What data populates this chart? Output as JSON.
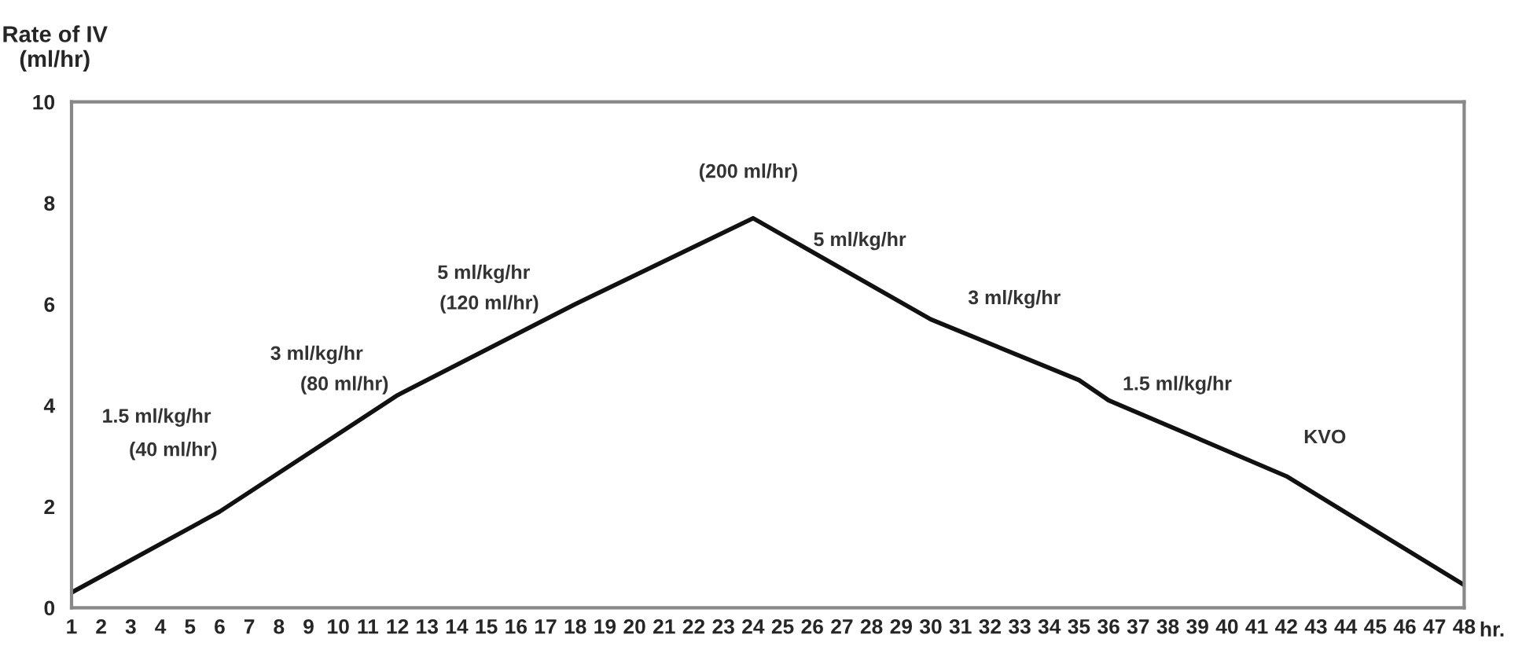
{
  "chart_data": {
    "type": "line",
    "ylabel": "Rate of IV\n(ml/hr)",
    "x": [
      1,
      6,
      12,
      18,
      24,
      30,
      35,
      36,
      42,
      48
    ],
    "series": [
      {
        "color": "#111111",
        "values": [
          0.3,
          1.9,
          4.2,
          6.0,
          7.7,
          5.7,
          4.5,
          4.1,
          2.6,
          0.45
        ]
      }
    ],
    "xlim": [
      1,
      48
    ],
    "xticks": [
      1,
      2,
      3,
      4,
      5,
      6,
      7,
      8,
      9,
      10,
      11,
      12,
      13,
      14,
      15,
      16,
      17,
      18,
      19,
      20,
      21,
      22,
      23,
      24,
      25,
      26,
      27,
      28,
      29,
      30,
      31,
      32,
      33,
      34,
      35,
      36,
      37,
      38,
      39,
      40,
      41,
      42,
      43,
      44,
      45,
      46,
      47,
      48
    ],
    "xlabel": "hr.",
    "ylim": [
      0,
      10
    ],
    "yticks": [
      0,
      2,
      4,
      6,
      8,
      10
    ],
    "grid": false,
    "legend": false,
    "marker": "none",
    "line_style": "solid",
    "annotations": [
      "1.5 ml/kg/hr",
      "(40 ml/hr)",
      "3 ml/kg/hr",
      "(80 ml/hr)",
      "5 ml/kg/hr",
      "(120 ml/hr)",
      "(200 ml/hr)",
      "5 ml/kg/hr",
      "3 ml/kg/hr",
      "1.5 ml/kg/hr",
      "KVO"
    ]
  }
}
